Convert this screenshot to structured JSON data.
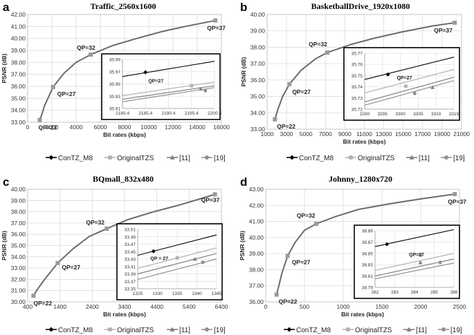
{
  "colors": {
    "ConTZ_M8": "#000000",
    "OriginalTZS": "#b0b0b0",
    "ref11": "#7d7d7d",
    "ref19": "#8f8f8f",
    "main_curve": "#6a6a6a",
    "grid": "#d9d9d9"
  },
  "chart_data": [
    {
      "type": "line",
      "panel_label": "a",
      "title": "Traffic_2560x1600",
      "xlabel": "Bit rates (kbps)",
      "ylabel": "PSNR (dB)",
      "xlim": [
        0,
        16000
      ],
      "ylim": [
        33.0,
        42.0
      ],
      "xticks": [
        "0",
        "2000",
        "4000",
        "6000",
        "8000",
        "10000",
        "12000",
        "14000",
        "16000"
      ],
      "yticks": [
        "33.00",
        "34.00",
        "35.00",
        "36.00",
        "37.00",
        "38.00",
        "39.00",
        "40.00",
        "41.00",
        "42.00"
      ],
      "curve": {
        "x": [
          1000,
          1150,
          1400,
          2100,
          3000,
          4000,
          5200,
          7000,
          9000,
          11000,
          13000,
          15500
        ],
        "y": [
          33.2,
          33.6,
          34.4,
          35.95,
          37.1,
          38.0,
          38.65,
          39.4,
          40.0,
          40.55,
          41.0,
          41.5
        ]
      },
      "points": [
        {
          "x": 1000,
          "y": 33.2,
          "label": "QP=22"
        },
        {
          "x": 2100,
          "y": 35.95,
          "label": "QP=27"
        },
        {
          "x": 5200,
          "y": 38.65,
          "label": "QP=32"
        },
        {
          "x": 15500,
          "y": 41.5,
          "label": "QP=37"
        }
      ],
      "inset": {
        "xlim": [
          2180.4,
          2200.4
        ],
        "ylim": [
          35.91,
          35.99
        ],
        "xticks": [
          "2180.4",
          "2185.4",
          "2190.4",
          "2195.4",
          "2200.4"
        ],
        "yticks": [
          "35.91",
          "35.93",
          "35.95",
          "35.97",
          "35.99"
        ],
        "annotation": "QP=27",
        "series": [
          {
            "name": "ConTZ_M8",
            "line": [
              [
                2180.4,
                35.962
              ],
              [
                2200.4,
                35.987
              ]
            ],
            "marker": [
              2185.4,
              35.969
            ]
          },
          {
            "name": "OriginalTZS",
            "line": [
              [
                2180.4,
                35.931
              ],
              [
                2200.4,
                35.953
              ]
            ],
            "marker": [
              2195.4,
              35.947
            ]
          },
          {
            "name": "[11]",
            "line": [
              [
                2180.4,
                35.925
              ],
              [
                2200.4,
                35.947
              ]
            ],
            "marker": [
              2197.4,
              35.942
            ]
          },
          {
            "name": "[19]",
            "line": [
              [
                2180.4,
                35.921
              ],
              [
                2200.4,
                35.944
              ]
            ],
            "marker": [
              2198.4,
              35.939
            ]
          }
        ]
      }
    },
    {
      "type": "line",
      "panel_label": "b",
      "title": "BasketballDrive_1920x1080",
      "xlabel": "Bit rates (kbps)",
      "ylabel": "PSNR (dB)",
      "xlim": [
        1000,
        21000
      ],
      "ylim": [
        33.0,
        40.0
      ],
      "xticks": [
        "1000",
        "3000",
        "5000",
        "7000",
        "9000",
        "11000",
        "13000",
        "15000",
        "17000",
        "19000",
        "21000"
      ],
      "yticks": [
        "33.00",
        "34.00",
        "35.00",
        "36.00",
        "37.00",
        "38.00",
        "39.00",
        "40.00"
      ],
      "curve": {
        "x": [
          1800,
          2100,
          2600,
          3300,
          4500,
          6000,
          7200,
          9500,
          12000,
          15000,
          18000,
          20300
        ],
        "y": [
          33.6,
          34.2,
          35.0,
          35.75,
          36.6,
          37.3,
          37.68,
          38.15,
          38.55,
          38.95,
          39.3,
          39.5
        ]
      },
      "points": [
        {
          "x": 1800,
          "y": 33.6,
          "label": "QP=22"
        },
        {
          "x": 3300,
          "y": 35.75,
          "label": "QP=27"
        },
        {
          "x": 7200,
          "y": 37.68,
          "label": "QP=32"
        },
        {
          "x": 20300,
          "y": 39.5,
          "label": "QP=37"
        }
      ],
      "inset": {
        "xlim": [
          3290,
          3315
        ],
        "ylim": [
          35.72,
          35.77
        ],
        "xticks": [
          "3290",
          "3295",
          "3300",
          "3305",
          "3310",
          "3315"
        ],
        "yticks": [
          "35.72",
          "35.73",
          "35.74",
          "35.75",
          "35.76",
          "35.77"
        ],
        "annotation": "QP=27",
        "series": [
          {
            "name": "ConTZ_M8",
            "line": [
              [
                3290,
                35.7465
              ],
              [
                3315,
                35.7665
              ]
            ],
            "marker": [
              3296.5,
              35.751
            ]
          },
          {
            "name": "OriginalTZS",
            "line": [
              [
                3290,
                35.7345
              ],
              [
                3315,
                35.7555
              ]
            ],
            "marker": [
              3301.5,
              35.7405
            ]
          },
          {
            "name": "[11]",
            "line": [
              [
                3290,
                35.7265
              ],
              [
                3315,
                35.7485
              ]
            ],
            "marker": [
              3309,
              35.7395
            ]
          },
          {
            "name": "[19]",
            "line": [
              [
                3290,
                35.7235
              ],
              [
                3315,
                35.7455
              ]
            ],
            "marker": [
              3304,
              35.734
            ]
          }
        ]
      }
    },
    {
      "type": "line",
      "panel_label": "c",
      "title": "BQmall_832x480",
      "xlabel": "Bit rates (kbps)",
      "ylabel": "PSNR (dB)",
      "xlim": [
        400,
        6400
      ],
      "ylim": [
        30.0,
        40.0
      ],
      "xticks": [
        "400",
        "1400",
        "2400",
        "3400",
        "4400",
        "5400",
        "6400"
      ],
      "yticks": [
        "30.00",
        "31.00",
        "32.00",
        "33.00",
        "34.00",
        "35.00",
        "36.00",
        "37.00",
        "38.00",
        "39.00",
        "40.00"
      ],
      "curve": {
        "x": [
          580,
          700,
          900,
          1330,
          1800,
          2300,
          2850,
          3500,
          4300,
          5100,
          5800,
          6200
        ],
        "y": [
          30.55,
          31.1,
          31.9,
          33.45,
          34.7,
          35.8,
          36.5,
          37.3,
          38.0,
          38.6,
          39.2,
          39.55
        ]
      },
      "points": [
        {
          "x": 580,
          "y": 30.55,
          "label": "QP=22"
        },
        {
          "x": 1330,
          "y": 33.45,
          "label": "QP=27"
        },
        {
          "x": 2850,
          "y": 36.5,
          "label": "QP=32"
        },
        {
          "x": 6200,
          "y": 39.55,
          "label": "QP=37"
        }
      ],
      "inset": {
        "xlim": [
          1325,
          1345
        ],
        "ylim": [
          33.35,
          33.51
        ],
        "xticks": [
          "1325",
          "1330",
          "1335",
          "1340",
          "1345"
        ],
        "yticks": [
          "33.35",
          "33.37",
          "33.39",
          "33.41",
          "33.43",
          "33.45",
          "33.47",
          "33.49",
          "33.51"
        ],
        "annotation": "QP = 27",
        "series": [
          {
            "name": "ConTZ_M8",
            "line": [
              [
                1325,
                33.44
              ],
              [
                1345,
                33.495
              ]
            ],
            "marker": [
              1329,
              33.451
            ]
          },
          {
            "name": "OriginalTZS",
            "line": [
              [
                1325,
                33.405
              ],
              [
                1345,
                33.46
              ]
            ],
            "marker": [
              1335,
              33.433
            ]
          },
          {
            "name": "[11]",
            "line": [
              [
                1325,
                33.39
              ],
              [
                1345,
                33.445
              ]
            ],
            "marker": [
              1339.5,
              33.43
            ]
          },
          {
            "name": "[19]",
            "line": [
              [
                1325,
                33.375
              ],
              [
                1345,
                33.43
              ]
            ],
            "marker": [
              1341.5,
              33.421
            ]
          }
        ]
      }
    },
    {
      "type": "line",
      "panel_label": "d",
      "title": "Johnny_1280x720",
      "xlabel": "Bit rates (kbps)",
      "ylabel": "PSNR (dB)",
      "xlim": [
        0,
        2500
      ],
      "ylim": [
        36.0,
        43.0
      ],
      "xticks": [
        "0",
        "500",
        "1000",
        "1500",
        "2000",
        "2500"
      ],
      "yticks": [
        "36.00",
        "37.00",
        "38.00",
        "39.00",
        "40.00",
        "41.00",
        "42.00",
        "43.00"
      ],
      "curve": {
        "x": [
          140,
          170,
          210,
          283,
          380,
          500,
          650,
          900,
          1200,
          1600,
          2000,
          2440
        ],
        "y": [
          36.45,
          37.0,
          37.8,
          38.86,
          39.7,
          40.45,
          40.85,
          41.3,
          41.75,
          42.1,
          42.4,
          42.7
        ]
      },
      "points": [
        {
          "x": 140,
          "y": 36.45,
          "label": "QP=22"
        },
        {
          "x": 283,
          "y": 38.86,
          "label": "QP=27"
        },
        {
          "x": 650,
          "y": 40.85,
          "label": "QP=32"
        },
        {
          "x": 2440,
          "y": 42.7,
          "label": "QP=37"
        }
      ],
      "inset": {
        "xlim": [
          282,
          286
        ],
        "ylim": [
          38.79,
          38.89
        ],
        "xticks": [
          "282",
          "283",
          "284",
          "285",
          "286"
        ],
        "yticks": [
          "38.79",
          "38.81",
          "38.83",
          "38.85",
          "38.87",
          "38.89"
        ],
        "annotation": "QP=27",
        "series": [
          {
            "name": "ConTZ_M8",
            "line": [
              [
                282,
                38.862
              ],
              [
                286,
                38.892
              ]
            ],
            "marker": [
              282.6,
              38.866
            ]
          },
          {
            "name": "OriginalTZS",
            "line": [
              [
                282,
                38.82
              ],
              [
                286,
                38.85
              ]
            ],
            "marker": [
              284.3,
              38.847
            ]
          },
          {
            "name": "[11]",
            "line": [
              [
                282,
                38.81
              ],
              [
                286,
                38.84
              ]
            ],
            "marker": [
              284.3,
              38.834
            ]
          },
          {
            "name": "[19]",
            "line": [
              [
                282,
                38.805
              ],
              [
                286,
                38.833
              ]
            ],
            "marker": [
              285.3,
              38.834
            ]
          }
        ]
      }
    }
  ],
  "legend": {
    "items": [
      {
        "label": "ConTZ_M8",
        "marker": "diamond"
      },
      {
        "label": "OriginalTZS",
        "marker": "square"
      },
      {
        "label": "[11]",
        "marker": "triangle"
      },
      {
        "label": "[19]",
        "marker": "circle"
      }
    ]
  }
}
